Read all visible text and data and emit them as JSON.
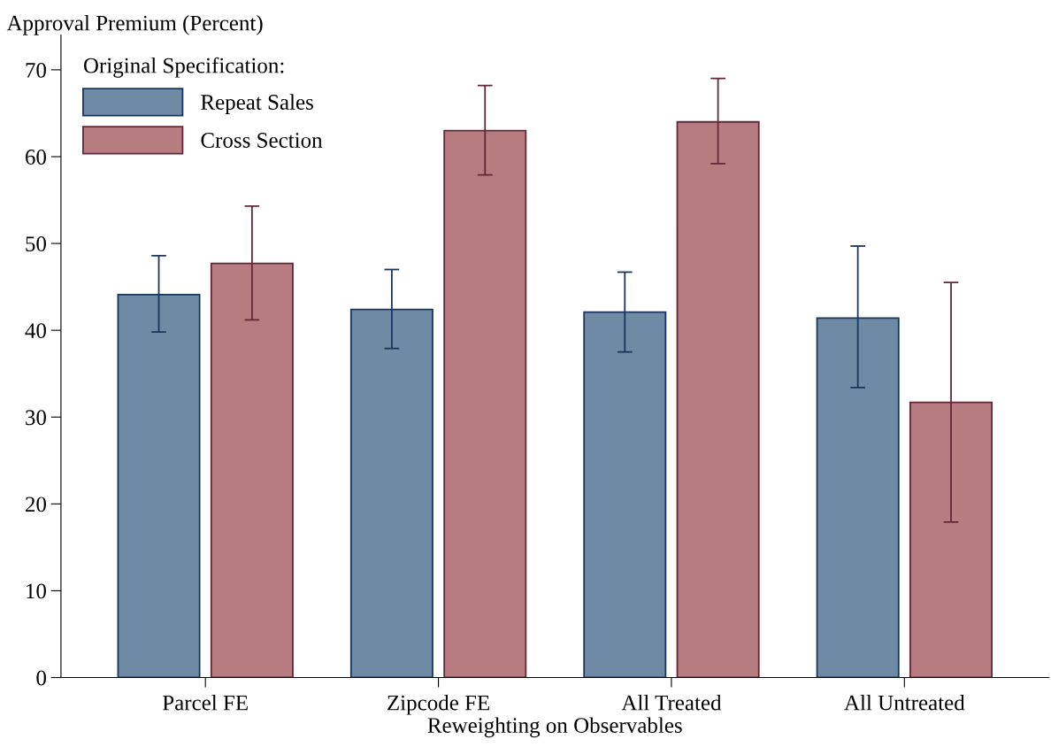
{
  "chart_data": {
    "type": "bar",
    "ylabel": "Approval Premium (Percent)",
    "xlabel": "Reweighting on Observables",
    "legend_title": "Original Specification:",
    "legend": "top left",
    "grid": false,
    "categories": [
      "Parcel FE",
      "Zipcode FE",
      "All Treated",
      "All Untreated"
    ],
    "ylim": [
      0,
      74
    ],
    "yticks": [
      0,
      10,
      20,
      30,
      40,
      50,
      60,
      70
    ],
    "series": [
      {
        "name": "Repeat Sales",
        "color": "#6e8aa5",
        "values": [
          44.1,
          42.4,
          42.1,
          41.4
        ],
        "errors": [
          [
            39.8,
            48.6
          ],
          [
            37.9,
            47.0
          ],
          [
            37.5,
            46.7
          ],
          [
            33.4,
            49.7
          ]
        ]
      },
      {
        "name": "Cross Section",
        "color": "#b77c7f",
        "values": [
          47.7,
          63.0,
          64.0,
          31.7
        ],
        "errors": [
          [
            41.2,
            54.3
          ],
          [
            57.9,
            68.2
          ],
          [
            59.2,
            69.0
          ],
          [
            17.9,
            45.5
          ]
        ]
      }
    ]
  }
}
